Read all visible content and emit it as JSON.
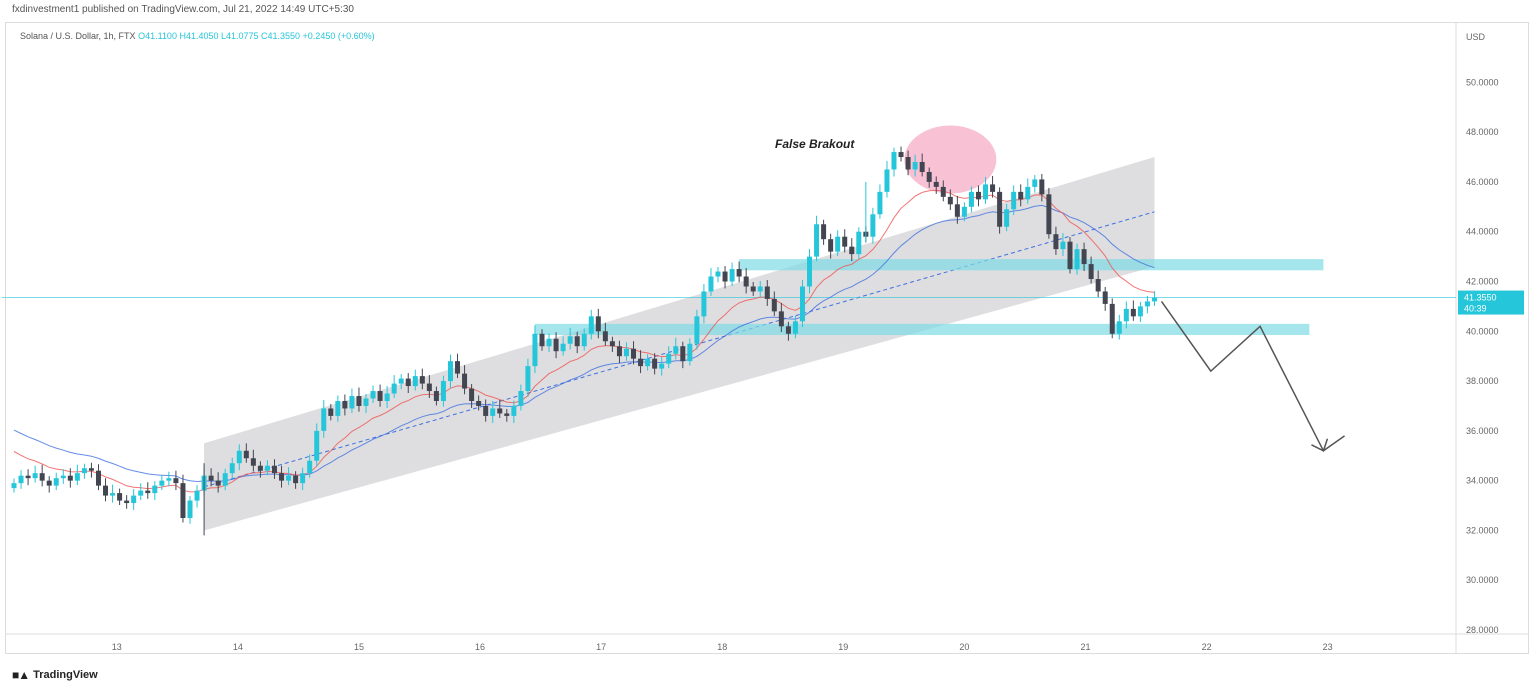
{
  "header": {
    "publisher": "fxdinvestment1 published on TradingView.com, Jul 21, 2022 14:49 UTC+5:30"
  },
  "legend": {
    "symbol": "Solana / U.S. Dollar, 1h, FTX",
    "ohlc": "O41.1100 H41.4050 L41.0775 C41.3550 +0.2450 (+0.60%)"
  },
  "footer": {
    "logo_text": "TradingView"
  },
  "chart_data": {
    "type": "candlestick",
    "currency": "USD",
    "y_axis_labels": [
      "50.0000",
      "48.0000",
      "46.0000",
      "44.0000",
      "42.0000",
      "40.0000",
      "38.0000",
      "36.0000",
      "34.0000",
      "32.0000",
      "30.0000",
      "28.0000"
    ],
    "ylim": [
      27.8,
      51.5
    ],
    "x_axis_labels": [
      "13",
      "14",
      "15",
      "16",
      "17",
      "18",
      "19",
      "20",
      "21",
      "22",
      "23"
    ],
    "price_tag": "41.3550",
    "price_tag_sub": "40:39",
    "current_price": 41.355,
    "colors": {
      "up": "#26c6da",
      "down": "#434651",
      "ma_fast": "#ef5350",
      "ma_slow": "#3f6fe0",
      "zone": "#7fdbe6",
      "channel": "#c8c8cc",
      "highlight": "#f48fb1"
    },
    "annotations": [
      {
        "text": "False Brakout"
      }
    ],
    "closes": [
      33.9,
      34.2,
      34.1,
      34.3,
      34.0,
      33.8,
      34.1,
      34.2,
      34.0,
      34.3,
      34.5,
      34.4,
      33.8,
      33.4,
      33.5,
      33.2,
      33.1,
      33.4,
      33.6,
      33.5,
      33.8,
      34.0,
      34.1,
      33.9,
      32.5,
      33.2,
      33.6,
      34.2,
      34.0,
      33.8,
      34.3,
      34.7,
      35.2,
      34.9,
      34.6,
      34.4,
      34.6,
      34.3,
      34.0,
      34.2,
      33.9,
      34.3,
      34.8,
      36.0,
      36.9,
      36.6,
      37.2,
      36.9,
      37.4,
      37.0,
      37.3,
      37.6,
      37.2,
      37.5,
      37.9,
      38.1,
      37.8,
      38.2,
      37.9,
      37.6,
      37.2,
      38.0,
      38.8,
      38.3,
      37.7,
      37.2,
      37.0,
      36.6,
      36.9,
      36.7,
      36.6,
      37.0,
      37.6,
      38.6,
      39.9,
      39.4,
      39.7,
      39.2,
      39.5,
      39.8,
      39.4,
      39.9,
      40.6,
      40.0,
      39.6,
      39.4,
      39.0,
      39.3,
      38.9,
      38.6,
      38.9,
      38.5,
      38.7,
      39.1,
      39.4,
      38.8,
      39.5,
      40.6,
      41.6,
      42.2,
      42.4,
      42.0,
      42.5,
      42.2,
      41.8,
      41.6,
      41.8,
      41.3,
      40.8,
      40.2,
      39.9,
      40.4,
      41.8,
      43.0,
      44.3,
      43.7,
      43.2,
      43.8,
      43.4,
      43.1,
      44.0,
      43.8,
      44.7,
      45.6,
      46.5,
      47.2,
      47.0,
      46.5,
      46.8,
      46.4,
      46.0,
      45.8,
      45.4,
      45.1,
      44.6,
      45.0,
      45.6,
      45.3,
      45.9,
      45.6,
      44.2,
      44.9,
      45.6,
      45.3,
      45.8,
      46.1,
      45.5,
      43.9,
      43.3,
      43.6,
      42.5,
      43.3,
      42.7,
      42.1,
      41.6,
      41.1,
      39.9,
      40.4,
      40.9,
      40.6,
      41.0,
      41.2,
      41.355
    ]
  }
}
